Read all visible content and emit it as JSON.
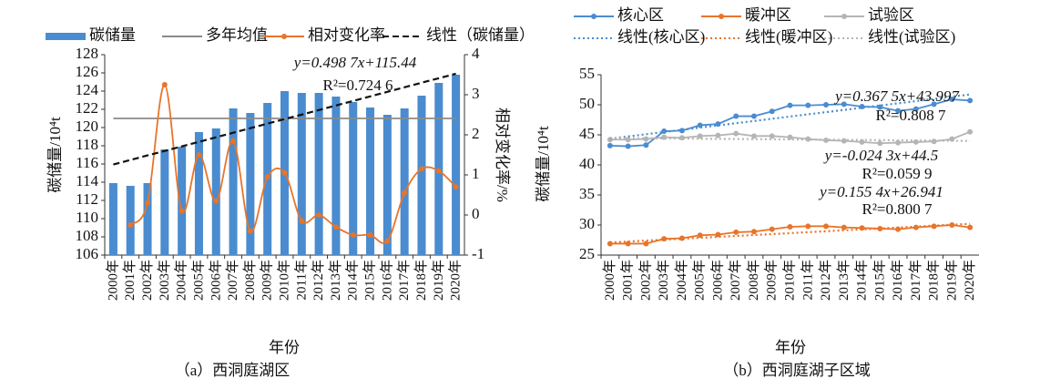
{
  "chart_data": [
    {
      "type": "bar",
      "caption": "（a）西洞庭湖区",
      "xlabel": "年份",
      "ylabel": "碳储量/10⁴t",
      "y2label": "相对变化率/%",
      "categories": [
        "2000年",
        "2001年",
        "2002年",
        "2003年",
        "2004年",
        "2005年",
        "2006年",
        "2007年",
        "2008年",
        "2009年",
        "2010年",
        "2011年",
        "2012年",
        "2013年",
        "2014年",
        "2015年",
        "2016年",
        "2017年",
        "2018年",
        "2019年",
        "2020年"
      ],
      "ylim": [
        106,
        128
      ],
      "yticks": [
        106,
        108,
        110,
        112,
        114,
        116,
        118,
        120,
        122,
        124,
        126,
        128
      ],
      "y2lim": [
        -1,
        4
      ],
      "y2ticks": [
        -1,
        0,
        1,
        2,
        3,
        4
      ],
      "series": [
        {
          "name": "碳储量",
          "type": "bar",
          "color": "#4a8ccf",
          "values": [
            113.9,
            113.6,
            113.9,
            117.6,
            117.9,
            119.5,
            119.9,
            122.1,
            121.6,
            122.7,
            124.0,
            123.8,
            123.8,
            123.4,
            122.8,
            122.2,
            121.4,
            122.1,
            123.5,
            124.9,
            125.8
          ]
        },
        {
          "name": "多年均值",
          "type": "line",
          "color": "#8a8a8a",
          "line_style": "solid",
          "values": [
            121,
            121,
            121,
            121,
            121,
            121,
            121,
            121,
            121,
            121,
            121,
            121,
            121,
            121,
            121,
            121,
            121,
            121,
            121,
            121,
            121
          ]
        },
        {
          "name": "相对变化率",
          "type": "line",
          "axis": "y2",
          "color": "#e8742a",
          "line_style": "solid",
          "marker": true,
          "smooth": true,
          "values": [
            null,
            -0.25,
            0.3,
            3.25,
            0.1,
            1.5,
            0.35,
            1.85,
            -0.4,
            0.95,
            1.05,
            -0.15,
            0.0,
            -0.3,
            -0.5,
            -0.5,
            -0.65,
            0.55,
            1.15,
            1.1,
            0.7
          ]
        },
        {
          "name": "线性（碳储量）",
          "type": "line",
          "color": "#111111",
          "line_style": "dashed",
          "values": [
            115.94,
            116.44,
            116.94,
            117.43,
            117.93,
            118.43,
            118.93,
            119.43,
            119.93,
            120.43,
            120.93,
            121.42,
            121.92,
            122.42,
            122.92,
            123.42,
            123.92,
            124.42,
            124.92,
            125.41,
            125.91
          ]
        }
      ],
      "annotations": [
        "y=0.498 7x+115.44",
        "R²=0.724 6"
      ]
    },
    {
      "type": "line",
      "caption": "（b）西洞庭湖子区域",
      "xlabel": "年份",
      "ylabel": "碳储量/10⁴t",
      "categories": [
        "2000年",
        "2001年",
        "2002年",
        "2003年",
        "2004年",
        "2005年",
        "2006年",
        "2007年",
        "2008年",
        "2009年",
        "2010年",
        "2011年",
        "2012年",
        "2013年",
        "2014年",
        "2015年",
        "2016年",
        "2017年",
        "2018年",
        "2019年",
        "2020年"
      ],
      "ylim": [
        25,
        55
      ],
      "yticks": [
        25,
        30,
        35,
        40,
        45,
        50,
        55
      ],
      "series": [
        {
          "name": "核心区",
          "type": "line",
          "color": "#4a8ccf",
          "line_style": "solid",
          "marker": true,
          "values": [
            43.2,
            43.1,
            43.3,
            45.6,
            45.7,
            46.6,
            46.8,
            48.1,
            48.1,
            48.9,
            49.9,
            49.9,
            50.0,
            50.1,
            49.7,
            49.6,
            49.0,
            49.3,
            50.1,
            50.9,
            50.7
          ]
        },
        {
          "name": "暖冲区",
          "type": "line",
          "color": "#e8742a",
          "line_style": "solid",
          "marker": true,
          "values": [
            26.9,
            26.9,
            26.9,
            27.7,
            27.8,
            28.3,
            28.4,
            28.8,
            28.9,
            29.3,
            29.7,
            29.8,
            29.8,
            29.6,
            29.5,
            29.4,
            29.3,
            29.6,
            29.8,
            30.0,
            29.6
          ]
        },
        {
          "name": "试验区",
          "type": "line",
          "color": "#b5b5b5",
          "line_style": "solid",
          "marker": true,
          "values": [
            44.2,
            44.2,
            44.3,
            44.6,
            44.5,
            44.8,
            44.9,
            45.2,
            44.8,
            44.8,
            44.6,
            44.3,
            44.1,
            44.0,
            43.8,
            43.6,
            43.7,
            43.8,
            43.9,
            44.3,
            45.5
          ]
        },
        {
          "name": "线性(核心区)",
          "type": "line",
          "color": "#4a8ccf",
          "line_style": "dotted",
          "values": [
            44.36,
            44.73,
            45.1,
            45.47,
            45.83,
            46.2,
            46.57,
            46.94,
            47.3,
            47.67,
            48.04,
            48.41,
            48.77,
            49.14,
            49.51,
            49.88,
            50.24,
            50.61,
            50.98,
            51.35,
            51.72
          ]
        },
        {
          "name": "线性(暖冲区)",
          "type": "line",
          "color": "#e8742a",
          "line_style": "dotted",
          "values": [
            27.1,
            27.25,
            27.41,
            27.56,
            27.72,
            27.87,
            28.03,
            28.18,
            28.34,
            28.49,
            28.65,
            28.81,
            28.96,
            29.12,
            29.27,
            29.43,
            29.58,
            29.74,
            29.89,
            30.05,
            30.2
          ]
        },
        {
          "name": "线性(试验区)",
          "type": "line",
          "color": "#b5b5b5",
          "line_style": "dotted",
          "values": [
            44.48,
            44.45,
            44.43,
            44.4,
            44.38,
            44.35,
            44.33,
            44.31,
            44.28,
            44.26,
            44.23,
            44.21,
            44.18,
            44.16,
            44.14,
            44.11,
            44.09,
            44.06,
            44.04,
            44.01,
            43.99
          ]
        }
      ],
      "annotations": [
        "y=0.367 5x+43.997",
        "R²=0.808 7",
        "y=-0.024 3x+44.5",
        "R²=0.059 9",
        "y=0.155 4x+26.941",
        "R²=0.800 7"
      ]
    }
  ]
}
